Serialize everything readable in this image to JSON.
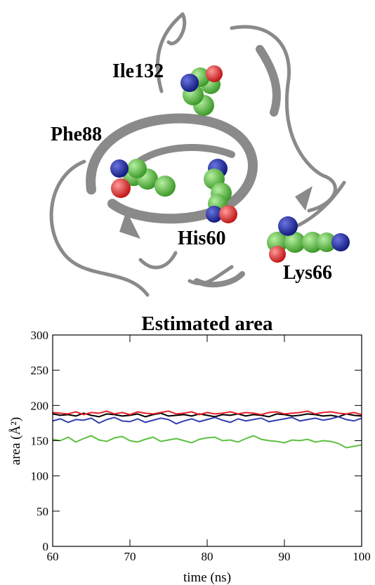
{
  "structure_labels": [
    "Ile132",
    "Phe88",
    "His60",
    "Lys66"
  ],
  "chart_data": {
    "type": "line",
    "title": "Estimated area",
    "x_label": "time (ns)",
    "y_label": "area (Å²)",
    "x": [
      60,
      61,
      62,
      63,
      64,
      65,
      66,
      67,
      68,
      69,
      70,
      71,
      72,
      73,
      74,
      75,
      76,
      77,
      78,
      79,
      80,
      81,
      82,
      83,
      84,
      85,
      86,
      87,
      88,
      89,
      90,
      91,
      92,
      93,
      94,
      95,
      96,
      97,
      98,
      99,
      100
    ],
    "series": [
      {
        "color": "#000000",
        "values": [
          188,
          186,
          187,
          185,
          189,
          186,
          184,
          188,
          187,
          185,
          186,
          188,
          184,
          187,
          189,
          185,
          186,
          187,
          185,
          188,
          186,
          184,
          187,
          186,
          188,
          185,
          187,
          186,
          184,
          188,
          187,
          185,
          186,
          188,
          187,
          185,
          186,
          184,
          188,
          186,
          185
        ]
      },
      {
        "color": "#e8202a",
        "values": [
          190,
          189,
          188,
          191,
          187,
          190,
          189,
          192,
          188,
          190,
          187,
          191,
          189,
          188,
          190,
          192,
          188,
          189,
          191,
          187,
          190,
          188,
          189,
          191,
          188,
          190,
          189,
          187,
          190,
          191,
          188,
          189,
          190,
          192,
          188,
          190,
          191,
          189,
          188,
          190,
          187
        ]
      },
      {
        "color": "#3040b0",
        "values": [
          178,
          181,
          176,
          180,
          179,
          182,
          175,
          180,
          183,
          178,
          177,
          181,
          176,
          179,
          182,
          180,
          174,
          178,
          181,
          177,
          180,
          183,
          179,
          176,
          181,
          178,
          180,
          182,
          177,
          179,
          181,
          183,
          178,
          180,
          182,
          179,
          181,
          184,
          180,
          178,
          182
        ]
      },
      {
        "color": "#5cc040",
        "values": [
          152,
          150,
          155,
          148,
          153,
          157,
          151,
          149,
          154,
          156,
          150,
          148,
          152,
          155,
          149,
          151,
          153,
          150,
          147,
          152,
          154,
          155,
          150,
          151,
          148,
          153,
          157,
          152,
          150,
          149,
          147,
          151,
          150,
          152,
          148,
          150,
          149,
          146,
          140,
          142,
          144
        ]
      }
    ],
    "xlim": [
      60,
      100
    ],
    "xticks": [
      60,
      70,
      80,
      90,
      100
    ],
    "ylim": [
      0,
      300
    ],
    "yticks": [
      0,
      50,
      100,
      150,
      200,
      250,
      300
    ]
  }
}
